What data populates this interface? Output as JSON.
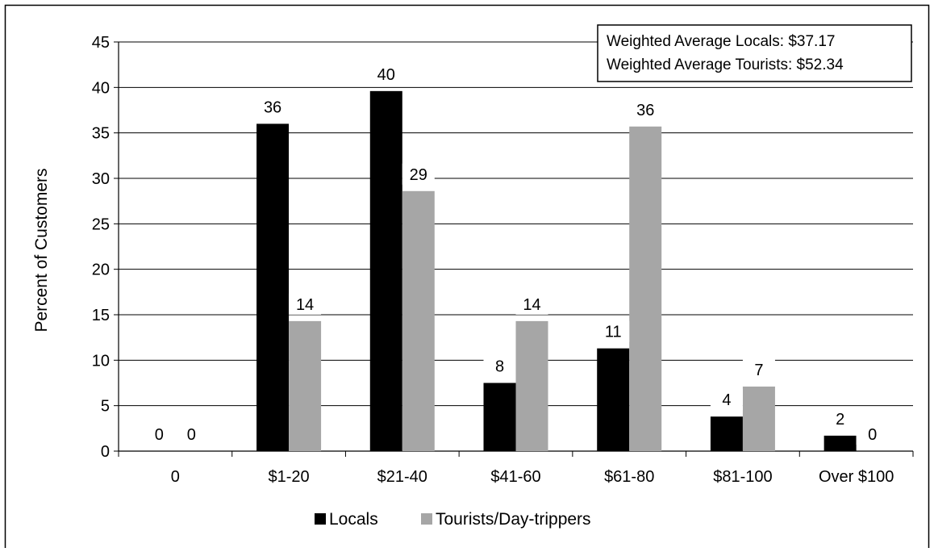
{
  "chart_data": {
    "type": "bar",
    "categories": [
      "0",
      "$1-20",
      "$21-40",
      "$41-60",
      "$61-80",
      "$81-100",
      "Over $100"
    ],
    "series": [
      {
        "name": "Locals",
        "color": "#000000",
        "values": [
          0,
          36,
          39.6,
          7.5,
          11.3,
          3.8,
          1.7
        ],
        "data_labels": [
          "0",
          "36",
          "40",
          "8",
          "11",
          "4",
          "2"
        ]
      },
      {
        "name": "Tourists/Day-trippers",
        "color": "#a6a6a6",
        "values": [
          0,
          14.3,
          28.6,
          14.3,
          35.7,
          7.1,
          0
        ],
        "data_labels": [
          "0",
          "14",
          "29",
          "14",
          "36",
          "7",
          "0"
        ]
      }
    ],
    "title": "",
    "xlabel": "",
    "ylabel": "Percent of Customers",
    "ylim": [
      0,
      45
    ],
    "yticks": [
      0,
      5,
      10,
      15,
      20,
      25,
      30,
      35,
      40,
      45
    ],
    "grid": true,
    "legend_position": "bottom",
    "annotation": {
      "lines": [
        "Weighted Average Locals: $37.17",
        "Weighted Average Tourists: $52.34"
      ],
      "position": "top-right"
    }
  }
}
